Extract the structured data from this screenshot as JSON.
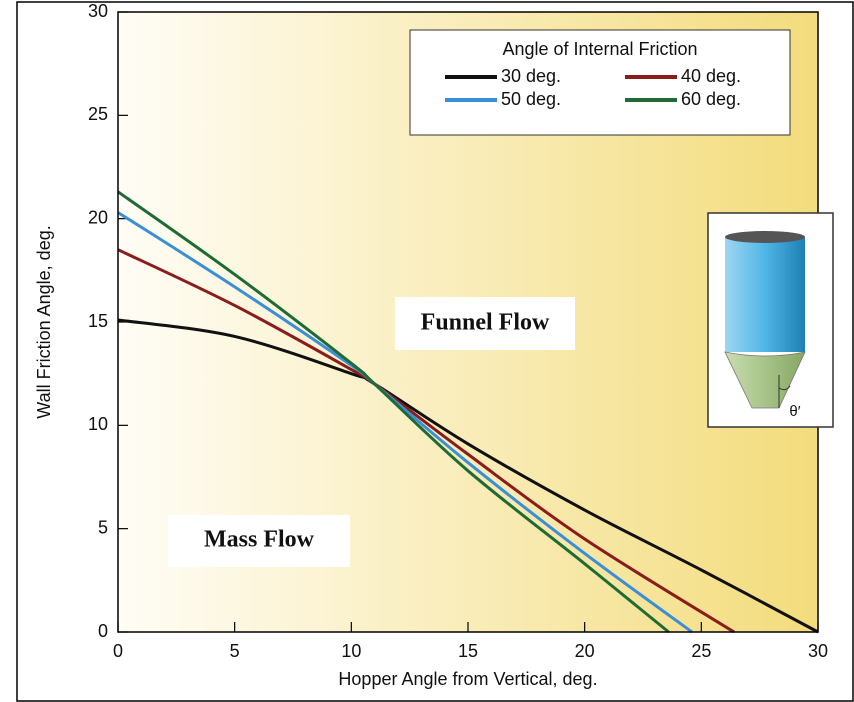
{
  "chart_data": {
    "type": "line",
    "xlabel": "Hopper Angle from Vertical, deg.",
    "ylabel": "Wall Friction Angle, deg.",
    "legend_title": "Angle of Internal Friction",
    "legend": "upper right",
    "annotations": [
      "Funnel Flow",
      "Mass Flow"
    ],
    "icon_label": "θ′",
    "xlim": [
      0,
      30
    ],
    "xticks": [
      0,
      5,
      10,
      15,
      20,
      25,
      30
    ],
    "ylim": [
      0,
      30
    ],
    "yticks": [
      0,
      5,
      10,
      15,
      20,
      25,
      30
    ],
    "series": [
      {
        "name": "30 deg.",
        "color": "#111111",
        "x": [
          0,
          5,
          10,
          11,
          15,
          20,
          25,
          30
        ],
        "values": [
          15.1,
          14.3,
          12.5,
          12.0,
          9.1,
          5.9,
          3.0,
          0
        ]
      },
      {
        "name": "40 deg.",
        "color": "#8b1c1c",
        "x": [
          0,
          5,
          10,
          11,
          15,
          20,
          26.4
        ],
        "values": [
          18.5,
          15.8,
          12.7,
          12.0,
          8.6,
          4.5,
          0
        ]
      },
      {
        "name": "50 deg.",
        "color": "#3a8fd6",
        "x": [
          0,
          5,
          10,
          11,
          15,
          20,
          24.6
        ],
        "values": [
          20.3,
          16.7,
          12.9,
          12.0,
          8.2,
          3.8,
          0
        ]
      },
      {
        "name": "60 deg.",
        "color": "#1e6b35",
        "x": [
          0,
          5,
          10,
          11,
          15,
          20,
          23.6
        ],
        "values": [
          21.3,
          17.3,
          13.0,
          12.0,
          7.8,
          3.3,
          0
        ]
      }
    ]
  }
}
